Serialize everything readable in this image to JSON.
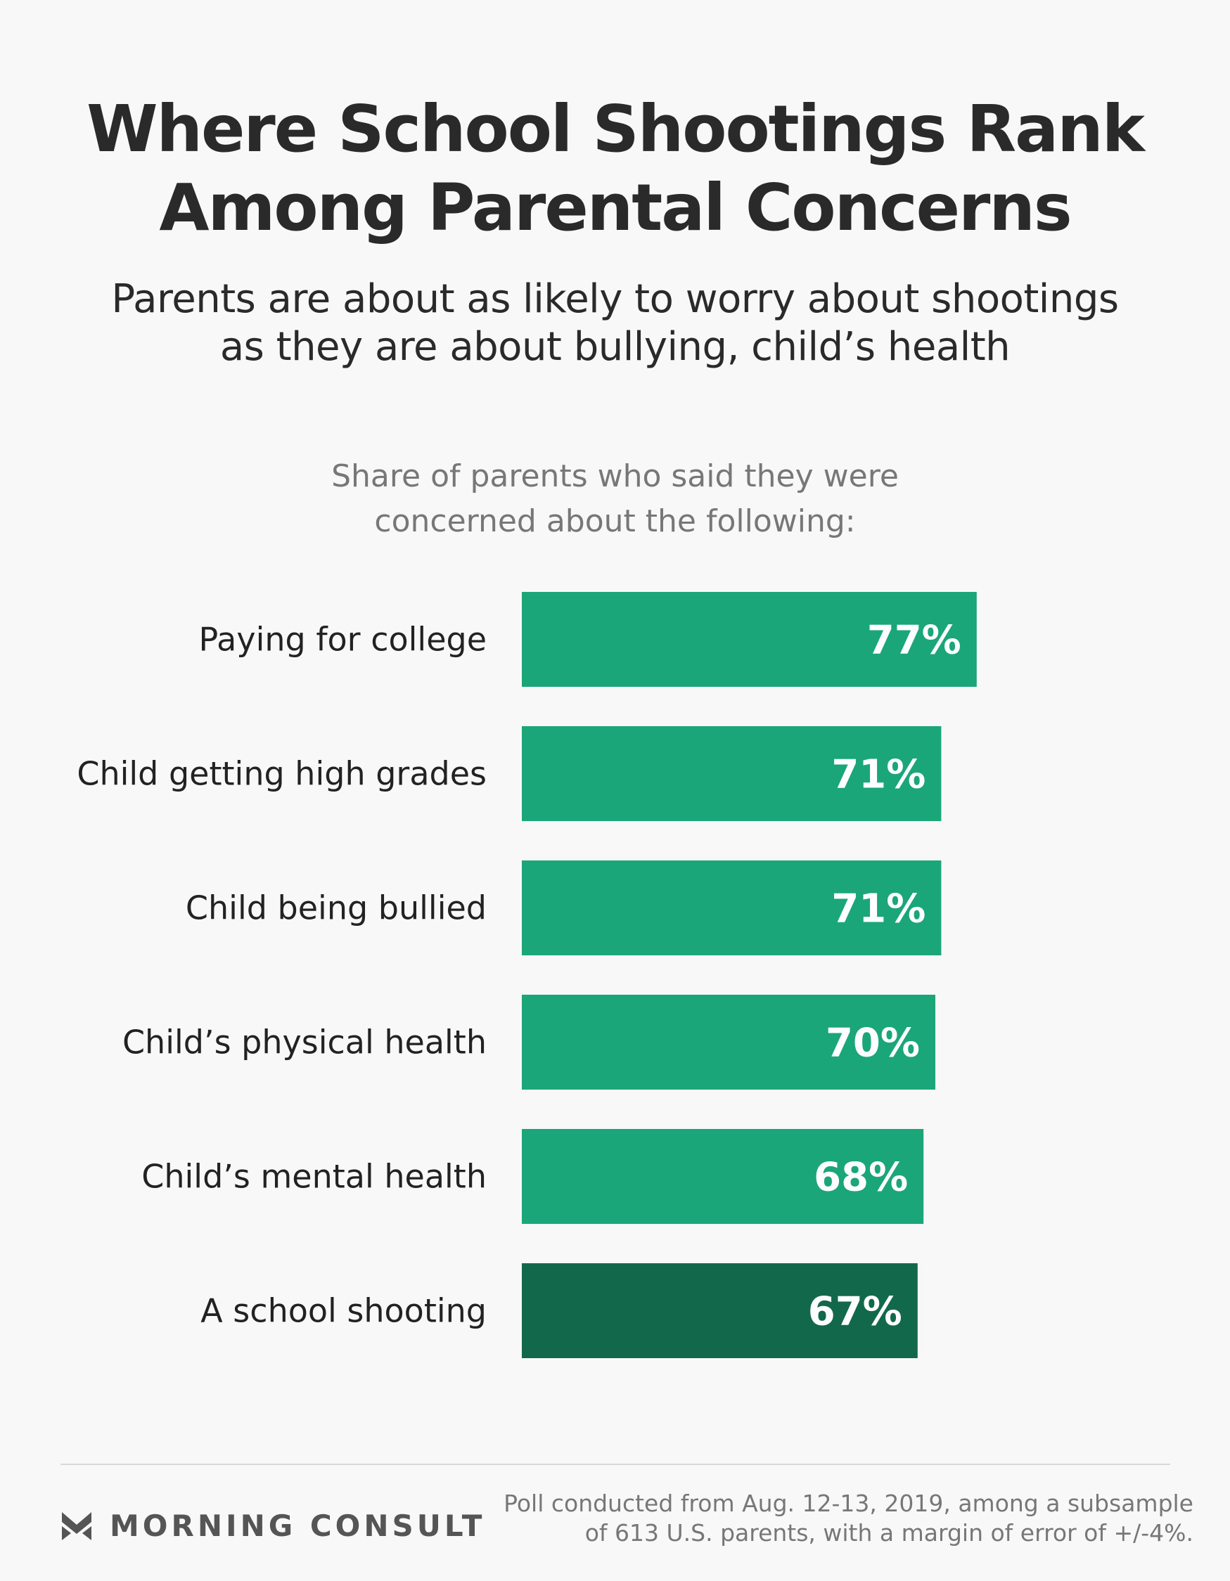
{
  "header": {
    "title_line1": "Where School Shootings Rank",
    "title_line2": "Among Parental Concerns",
    "subtitle_line1": "Parents are about as likely to worry about shootings",
    "subtitle_line2": "as they are about bullying, child’s health"
  },
  "chart_data": {
    "type": "bar",
    "orientation": "horizontal",
    "title": "Share of parents who said they were concerned about the following:",
    "title_line1": "Share of parents who said they were",
    "title_line2": "concerned about the following:",
    "categories": [
      "Paying for college",
      "Child getting high grades",
      "Child being bullied",
      "Child’s physical health",
      "Child’s mental health",
      "A school shooting"
    ],
    "values": [
      77,
      71,
      71,
      70,
      68,
      67
    ],
    "value_labels": [
      "77%",
      "71%",
      "71%",
      "70%",
      "68%",
      "67%"
    ],
    "unit": "%",
    "xlim": [
      0,
      100
    ],
    "grid": false,
    "legend": "none",
    "highlight_index": 5,
    "colors": {
      "bar": "#1ba67a",
      "highlight": "#11684b",
      "value_label": "#ffffff",
      "category_label": "#222222"
    }
  },
  "footer": {
    "logo_text": "MORNING CONSULT",
    "logo_icon": "morning-consult-m-icon",
    "source_line1": "Poll conducted from Aug. 12-13, 2019, among a subsample",
    "source_line2": "of 613 U.S. parents, with a margin of error of +/-4%."
  }
}
